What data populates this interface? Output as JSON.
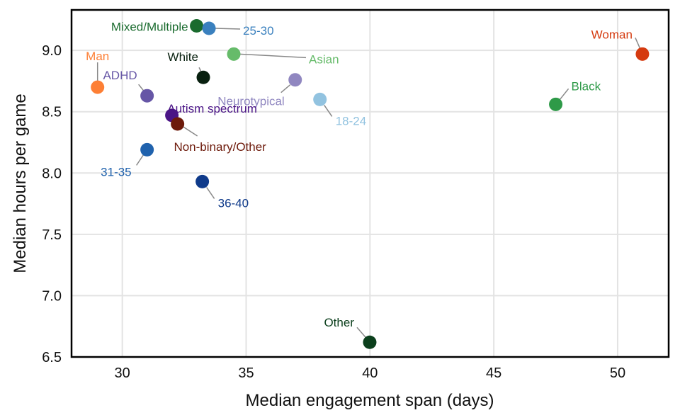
{
  "chart_data": {
    "type": "scatter",
    "title": "",
    "xlabel": "Median engagement span (days)",
    "ylabel": "Median hours per game",
    "xlim": [
      27.95,
      52.06
    ],
    "ylim": [
      6.5,
      9.33
    ],
    "xticks": [
      30,
      35,
      40,
      45,
      50
    ],
    "xtick_labels": [
      "30",
      "35",
      "40",
      "45",
      "50"
    ],
    "yticks": [
      6.5,
      7.0,
      7.5,
      8.0,
      8.5,
      9.0
    ],
    "ytick_labels": [
      "6.5",
      "7.0",
      "7.5",
      "8.0",
      "8.5",
      "9.0"
    ],
    "grid": true,
    "legend": "none",
    "points": [
      {
        "label": "Mixed/Multiple",
        "x": 33.0,
        "y": 9.2,
        "color": "#1a6b2e",
        "label_pos": "left"
      },
      {
        "label": "25-30",
        "x": 33.5,
        "y": 9.18,
        "color": "#3a80be",
        "label_pos": "right-far"
      },
      {
        "label": "Asian",
        "x": 34.5,
        "y": 8.97,
        "color": "#66bb6a",
        "label_pos": "right-far-down"
      },
      {
        "label": "White",
        "x": 33.27,
        "y": 8.78,
        "color": "#08200f",
        "label_pos": "up-left"
      },
      {
        "label": "Man",
        "x": 29.0,
        "y": 8.7,
        "color": "#fd7f35",
        "label_pos": "up"
      },
      {
        "label": "ADHD",
        "x": 31.0,
        "y": 8.63,
        "color": "#6656a6",
        "label_pos": "up-left"
      },
      {
        "label": "Neurotypical",
        "x": 36.98,
        "y": 8.76,
        "color": "#9087c0",
        "label_pos": "down-left"
      },
      {
        "label": "Autism spectrum",
        "x": 32.0,
        "y": 8.47,
        "color": "#4a1486",
        "label_pos": "label-left-up"
      },
      {
        "label": "18-24",
        "x": 37.98,
        "y": 8.6,
        "color": "#92c3e0",
        "label_pos": "down-right"
      },
      {
        "label": "Non-binary/Other",
        "x": 32.23,
        "y": 8.4,
        "color": "#6d1a0b",
        "label_pos": "down-right-long"
      },
      {
        "label": "31-35",
        "x": 31.0,
        "y": 8.19,
        "color": "#2062ad",
        "label_pos": "down-left"
      },
      {
        "label": "36-40",
        "x": 33.23,
        "y": 7.93,
        "color": "#0f3a8a",
        "label_pos": "down-right"
      },
      {
        "label": "Other",
        "x": 39.99,
        "y": 6.62,
        "color": "#0b3f1c",
        "label_pos": "up-left"
      },
      {
        "label": "Woman",
        "x": 51.0,
        "y": 8.97,
        "color": "#d53a0f",
        "label_pos": "up-left"
      },
      {
        "label": "Black",
        "x": 47.5,
        "y": 8.56,
        "color": "#2e9a48",
        "label_pos": "up-right"
      }
    ]
  }
}
